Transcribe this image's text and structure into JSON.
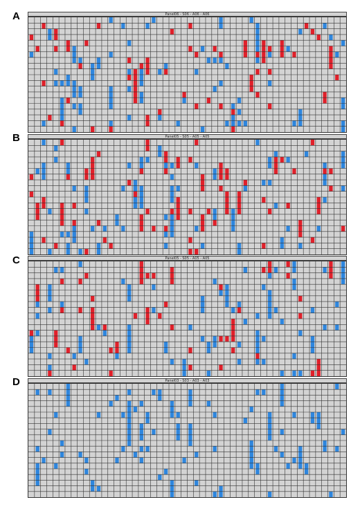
{
  "colors": {
    "background": "#d3d3d3",
    "grid": "#333333",
    "red": "#e0202a",
    "blue": "#2e86de"
  },
  "panels": [
    {
      "letter": "A",
      "header": "Panel06 - S06 - A06 - A06"
    },
    {
      "letter": "B",
      "header": "Panel05 - S05 - A05 - A05"
    },
    {
      "letter": "C",
      "header": "Panel05 - S05 - A05 - A05"
    },
    {
      "letter": "D",
      "header": "Panel03 - S03 - A03 - A03"
    }
  ]
}
